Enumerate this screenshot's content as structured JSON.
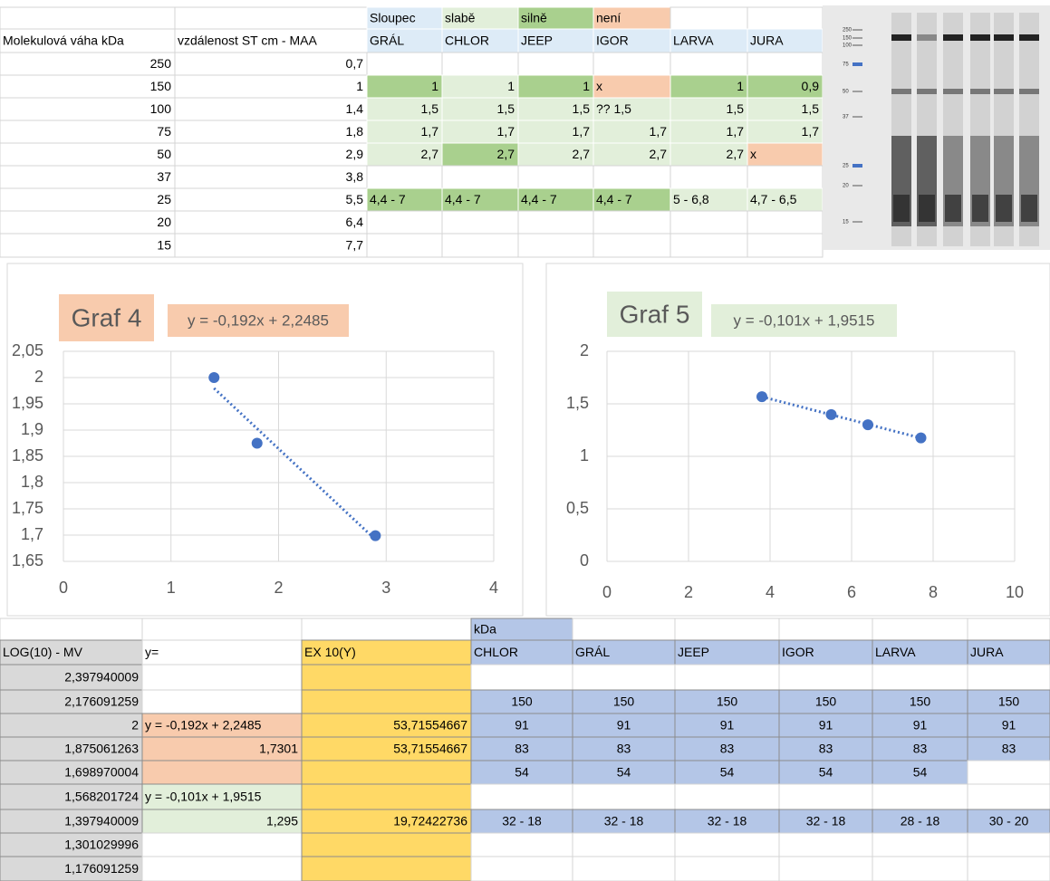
{
  "top_table": {
    "rows": [
      [
        null,
        null,
        "Sloupec",
        "slabě",
        "silně",
        "není",
        null,
        null
      ],
      [
        "Molekulová váha kDa",
        "vzdálenost ST cm - MAA",
        "GRÁL",
        "CHLOR",
        "JEEP",
        "IGOR",
        "LARVA",
        "JURA"
      ],
      [
        "250",
        "0,7",
        null,
        null,
        null,
        null,
        null,
        null
      ],
      [
        "150",
        "1",
        "1",
        "1",
        "1",
        "x",
        "1",
        "0,9"
      ],
      [
        "100",
        "1,4",
        "1,5",
        "1,5",
        "1,5",
        "?? 1,5",
        "1,5",
        "1,5"
      ],
      [
        "75",
        "1,8",
        "1,7",
        "1,7",
        "1,7",
        "1,7",
        "1,7",
        "1,7"
      ],
      [
        "50",
        "2,9",
        "2,7",
        "2,7",
        "2,7",
        "2,7",
        "2,7",
        "x"
      ],
      [
        "37",
        "3,8",
        null,
        null,
        null,
        null,
        null,
        null
      ],
      [
        "25",
        "5,5",
        "4,4 - 7",
        "4,4 - 7",
        "4,4 - 7",
        "4,4 - 7",
        "5 - 6,8",
        "4,7 - 6,5"
      ],
      [
        "20",
        "6,4",
        null,
        null,
        null,
        null,
        null,
        null
      ],
      [
        "15",
        "7,7",
        null,
        null,
        null,
        null,
        null,
        null
      ]
    ]
  },
  "gel_image": {
    "markers": [
      "250",
      "150",
      "100",
      "75",
      "50",
      "37",
      "25",
      "20",
      "15"
    ]
  },
  "chart_data": [
    {
      "type": "scatter",
      "title": "Graf 4",
      "annotation": "y = -0,192x + 2,2485",
      "highlight": "#f8cbad",
      "x": [
        1.4,
        1.8,
        2.9
      ],
      "values": [
        2,
        1.875061263,
        1.698970004
      ],
      "color": "#4472c4",
      "xlim": [
        0,
        4
      ],
      "xticks": [
        0,
        1,
        2,
        3,
        4
      ],
      "ylim": [
        1.65,
        2.05
      ],
      "yticks": [
        {
          "value": 1.65,
          "label": "1,65"
        },
        {
          "value": 1.7,
          "label": "1,7"
        },
        {
          "value": 1.75,
          "label": "1,75"
        },
        {
          "value": 1.8,
          "label": "1,8"
        },
        {
          "value": 1.85,
          "label": "1,85"
        },
        {
          "value": 1.9,
          "label": "1,9"
        },
        {
          "value": 1.95,
          "label": "1,95"
        },
        2,
        {
          "value": 2.05,
          "label": "2,05"
        }
      ],
      "grid": true,
      "trendline": true
    },
    {
      "type": "scatter",
      "title": "Graf 5",
      "annotation": "y = -0,101x + 1,9515",
      "highlight": "#e2efda",
      "x": [
        3.8,
        5.5,
        6.4,
        7.7
      ],
      "values": [
        1.568201724,
        1.397940009,
        1.301029996,
        1.176091259
      ],
      "color": "#4472c4",
      "xlim": [
        0,
        10
      ],
      "xticks": [
        0,
        2,
        4,
        6,
        8,
        10
      ],
      "ylim": [
        0,
        2
      ],
      "yticks": [
        0,
        {
          "value": 0.5,
          "label": "0,5"
        },
        1,
        {
          "value": 1.5,
          "label": "1,5"
        },
        2
      ],
      "grid": true,
      "trendline": true
    }
  ],
  "bottom_table": {
    "rows": [
      [
        null,
        null,
        null,
        "kDa",
        null,
        null,
        null,
        null,
        null
      ],
      [
        "LOG(10) - MV",
        "y=",
        "EX 10(Y)",
        "CHLOR",
        "GRÁL",
        "JEEP",
        "IGOR",
        "LARVA",
        "JURA"
      ],
      [
        "2,397940009",
        null,
        null,
        null,
        null,
        null,
        null,
        null,
        null
      ],
      [
        "2,176091259",
        null,
        null,
        "150",
        "150",
        "150",
        "150",
        "150",
        "150"
      ],
      [
        "2",
        "y = -0,192x + 2,2485",
        "53,71554667",
        "91",
        "91",
        "91",
        "91",
        "91",
        "91"
      ],
      [
        "1,875061263",
        "1,7301",
        "53,71554667",
        "83",
        "83",
        "83",
        "83",
        "83",
        "83"
      ],
      [
        "1,698970004",
        null,
        null,
        "54",
        "54",
        "54",
        "54",
        "54",
        null
      ],
      [
        "1,568201724",
        "y = -0,101x + 1,9515",
        null,
        null,
        null,
        null,
        null,
        null,
        null
      ],
      [
        "1,397940009",
        "1,295",
        "19,72422736",
        "32 - 18",
        "32 - 18",
        "32 - 18",
        "32 - 18",
        "28 - 18",
        "30 - 20"
      ],
      [
        "1,301029996",
        null,
        null,
        null,
        null,
        null,
        null,
        null,
        null
      ],
      [
        "1,176091259",
        null,
        null,
        null,
        null,
        null,
        null,
        null,
        null
      ]
    ]
  }
}
